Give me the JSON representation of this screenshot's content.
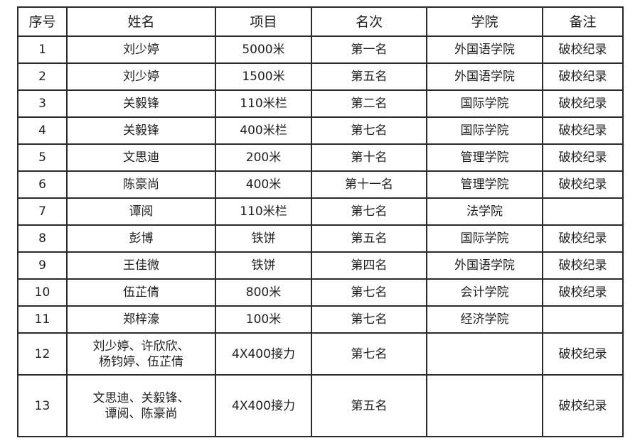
{
  "table": {
    "headers": [
      "序号",
      "姓名",
      "项目",
      "名次",
      "学院",
      "备注"
    ],
    "rows": [
      [
        "1",
        "刘少婷",
        "5000米",
        "第一名",
        "外国语学院",
        "破校纪录"
      ],
      [
        "2",
        "刘少婷",
        "1500米",
        "第五名",
        "外国语学院",
        "破校纪录"
      ],
      [
        "3",
        "关毅锋",
        "110米栏",
        "第二名",
        "国际学院",
        "破校纪录"
      ],
      [
        "4",
        "关毅锋",
        "400米栏",
        "第七名",
        "国际学院",
        "破校纪录"
      ],
      [
        "5",
        "文思迪",
        "200米",
        "第十名",
        "管理学院",
        "破校纪录"
      ],
      [
        "6",
        "陈豪尚",
        "400米",
        "第十一名",
        "管理学院",
        "破校纪录"
      ],
      [
        "7",
        "谭阅",
        "110米栏",
        "第七名",
        "法学院",
        ""
      ],
      [
        "8",
        "彭博",
        "铁饼",
        "第五名",
        "国际学院",
        "破校纪录"
      ],
      [
        "9",
        "王佳微",
        "铁饼",
        "第四名",
        "外国语学院",
        "破校纪录"
      ],
      [
        "10",
        "伍芷倩",
        "800米",
        "第七名",
        "会计学院",
        "破校纪录"
      ],
      [
        "11",
        "郑梓濠",
        "100米",
        "第七名",
        "经济学院",
        ""
      ],
      [
        "12",
        "刘少婷、许欣欣、\n杨钧婷、伍芷倩",
        "4X400接力",
        "第七名",
        "",
        "破校纪录"
      ],
      [
        "13",
        "文思迪、关毅锋、\n谭阅、陈豪尚",
        "4X400接力",
        "第五名",
        "",
        "破校纪录"
      ]
    ]
  }
}
